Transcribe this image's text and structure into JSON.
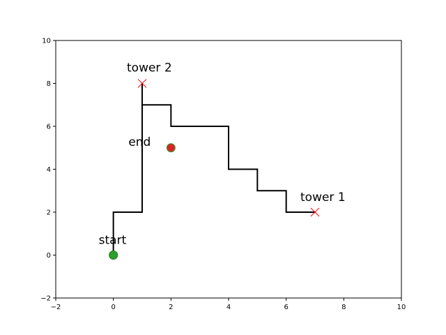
{
  "chart_data": {
    "type": "line",
    "title": "",
    "xlabel": "",
    "ylabel": "",
    "xlim": [
      -2,
      10
    ],
    "ylim": [
      -2,
      10
    ],
    "xticks": [
      "−2",
      "0",
      "2",
      "4",
      "6",
      "8",
      "10"
    ],
    "yticks": [
      "−2",
      "0",
      "2",
      "4",
      "6",
      "8",
      "10"
    ],
    "xtick_values": [
      -2,
      0,
      2,
      4,
      6,
      8,
      10
    ],
    "ytick_values": [
      -2,
      0,
      2,
      4,
      6,
      8,
      10
    ],
    "grid": false,
    "path": {
      "color": "#000000",
      "points": [
        [
          0,
          0
        ],
        [
          0,
          2
        ],
        [
          1,
          2
        ],
        [
          1,
          8
        ],
        [
          1,
          7
        ],
        [
          2,
          7
        ],
        [
          2,
          6
        ],
        [
          4,
          6
        ],
        [
          4,
          4
        ],
        [
          5,
          4
        ],
        [
          5,
          3
        ],
        [
          6,
          3
        ],
        [
          6,
          2
        ],
        [
          7,
          2
        ]
      ]
    },
    "markers": [
      {
        "name": "start",
        "x": 0,
        "y": 0,
        "shape": "circle",
        "color": "#2ca02c",
        "edge": "#1a7a1a"
      },
      {
        "name": "end",
        "x": 2,
        "y": 5,
        "shape": "circle",
        "color": "#d62728",
        "edge": "#2ca02c"
      },
      {
        "name": "tower 1",
        "x": 7,
        "y": 2,
        "shape": "x",
        "color": "#ff0000"
      },
      {
        "name": "tower 2",
        "x": 1,
        "y": 8,
        "shape": "x",
        "color": "#ff0000"
      }
    ],
    "annotations": [
      {
        "text": "start",
        "x": 0,
        "y": 0
      },
      {
        "text": "end",
        "x": 2,
        "y": 5
      },
      {
        "text": "tower 1",
        "x": 7,
        "y": 2
      },
      {
        "text": "tower 2",
        "x": 1,
        "y": 8
      }
    ]
  }
}
